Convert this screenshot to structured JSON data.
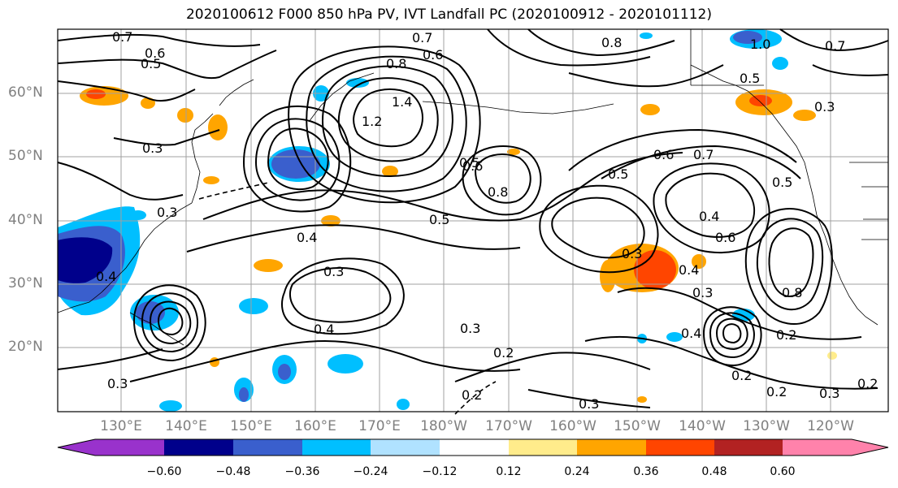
{
  "title": "2020100612 F000 850 hPa PV, IVT Landfall PC (2020100912 - 2020101112)",
  "lat_labels": [
    "60°N",
    "50°N",
    "40°N",
    "30°N",
    "20°N"
  ],
  "lon_labels": [
    "130°E",
    "140°E",
    "150°E",
    "160°E",
    "170°E",
    "180°W",
    "170°W",
    "160°W",
    "150°W",
    "140°W",
    "130°W",
    "120°W"
  ],
  "colorbar": {
    "ticks": [
      "−0.60",
      "−0.48",
      "−0.36",
      "−0.24",
      "−0.12",
      "0.12",
      "0.24",
      "0.36",
      "0.48",
      "0.60"
    ],
    "colors": [
      "#9932cc",
      "#00008b",
      "#3a5fcd",
      "#00bfff",
      "#b0e2ff",
      "#ffffff",
      "#ffec8b",
      "#ffa500",
      "#ff4500",
      "#b22222",
      "#ff82ab"
    ]
  },
  "contour_labels": [
    "0.7",
    "0.5",
    "0.6",
    "0.8",
    "0.6",
    "0.7",
    "0.8",
    "1.0",
    "0.7",
    "0.5",
    "0.3",
    "0.3",
    "1.4",
    "1.2",
    "0.5",
    "0.6",
    "0.5",
    "0.6",
    "0.7",
    "0.8",
    "0.5",
    "0.4",
    "0.3",
    "0.5",
    "0.6",
    "0.4",
    "0.3",
    "0.4",
    "0.3",
    "0.2",
    "0.4",
    "0.3",
    "0.8",
    "0.2",
    "0.2",
    "0.3",
    "0.2",
    "0.4",
    "0.3",
    "0.2",
    "0.2",
    "0.3",
    "0.4",
    "0.3"
  ]
}
